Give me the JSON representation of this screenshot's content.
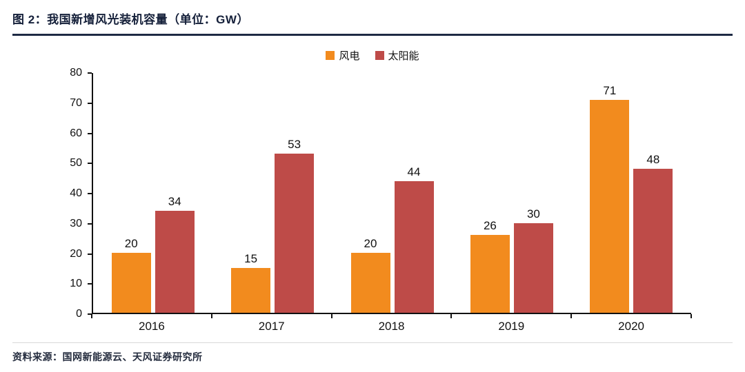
{
  "header": {
    "title": "图 2：我国新增风光装机容量（单位：GW）"
  },
  "chart_data": {
    "type": "bar",
    "title": "图 2：我国新增风光装机容量（单位：GW）",
    "unit": "GW",
    "categories": [
      "2016",
      "2017",
      "2018",
      "2019",
      "2020"
    ],
    "series": [
      {
        "name": "风电",
        "color": "#F28B1E",
        "values": [
          20,
          15,
          20,
          26,
          71
        ]
      },
      {
        "name": "太阳能",
        "color": "#BE4B48",
        "values": [
          34,
          53,
          44,
          30,
          48
        ]
      }
    ],
    "ylim": [
      0,
      80
    ],
    "ytick_step": 10,
    "grid": false,
    "legend_position": "top"
  },
  "footer": {
    "source": "资料来源：国网新能源云、天风证券研究所"
  }
}
